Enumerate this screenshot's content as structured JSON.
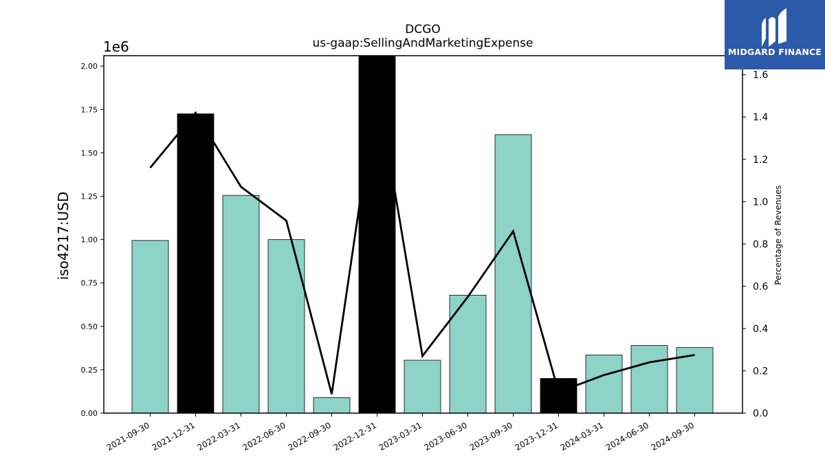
{
  "chart_data": {
    "type": "bar",
    "title": "DCGO",
    "subtitle": "us-gaap:SellingAndMarketingExpense",
    "ylabel": "iso4217:USD",
    "y_offset_label": "1e6",
    "y2label": "Percentage of Revenues",
    "categories": [
      "2021-09-30",
      "2021-12-31",
      "2022-03-31",
      "2022-06-30",
      "2022-09-30",
      "2022-12-31",
      "2023-03-31",
      "2023-06-30",
      "2023-09-30",
      "2023-12-31",
      "2024-03-31",
      "2024-06-30",
      "2024-09-30"
    ],
    "values": [
      995000,
      1725000,
      1255000,
      1000000,
      90000,
      2060000,
      305000,
      680000,
      1605000,
      200000,
      335000,
      390000,
      378000
    ],
    "bar_colors": [
      "#8dd3c7",
      "#000000",
      "#8dd3c7",
      "#8dd3c7",
      "#8dd3c7",
      "#000000",
      "#8dd3c7",
      "#8dd3c7",
      "#8dd3c7",
      "#000000",
      "#8dd3c7",
      "#8dd3c7",
      "#8dd3c7"
    ],
    "series": [
      {
        "axis": "right",
        "type": "line",
        "values": [
          1.16,
          1.42,
          1.07,
          0.91,
          0.09,
          1.55,
          0.27,
          0.55,
          0.86,
          0.1,
          0.18,
          0.24,
          0.275
        ]
      }
    ],
    "ylim": [
      0,
      2060000
    ],
    "y2lim": [
      0,
      1.69
    ],
    "yticks": [
      0,
      250000,
      500000,
      750000,
      1000000,
      1250000,
      1500000,
      1750000,
      2000000
    ],
    "ytick_labels": [
      "0.00",
      "0.25",
      "0.50",
      "0.75",
      "1.00",
      "1.25",
      "1.50",
      "1.75",
      "2.00"
    ],
    "y2ticks": [
      0,
      0.2,
      0.4,
      0.6,
      0.8,
      1.0,
      1.2,
      1.4,
      1.6
    ],
    "y2tick_labels": [
      "0.0",
      "0.2",
      "0.4",
      "0.6",
      "0.8",
      "1.0",
      "1.2",
      "1.4",
      "1.6"
    ],
    "grid": false
  },
  "logo": {
    "text": "MIDGARD FINANCE",
    "background": "#2d5aa8"
  }
}
